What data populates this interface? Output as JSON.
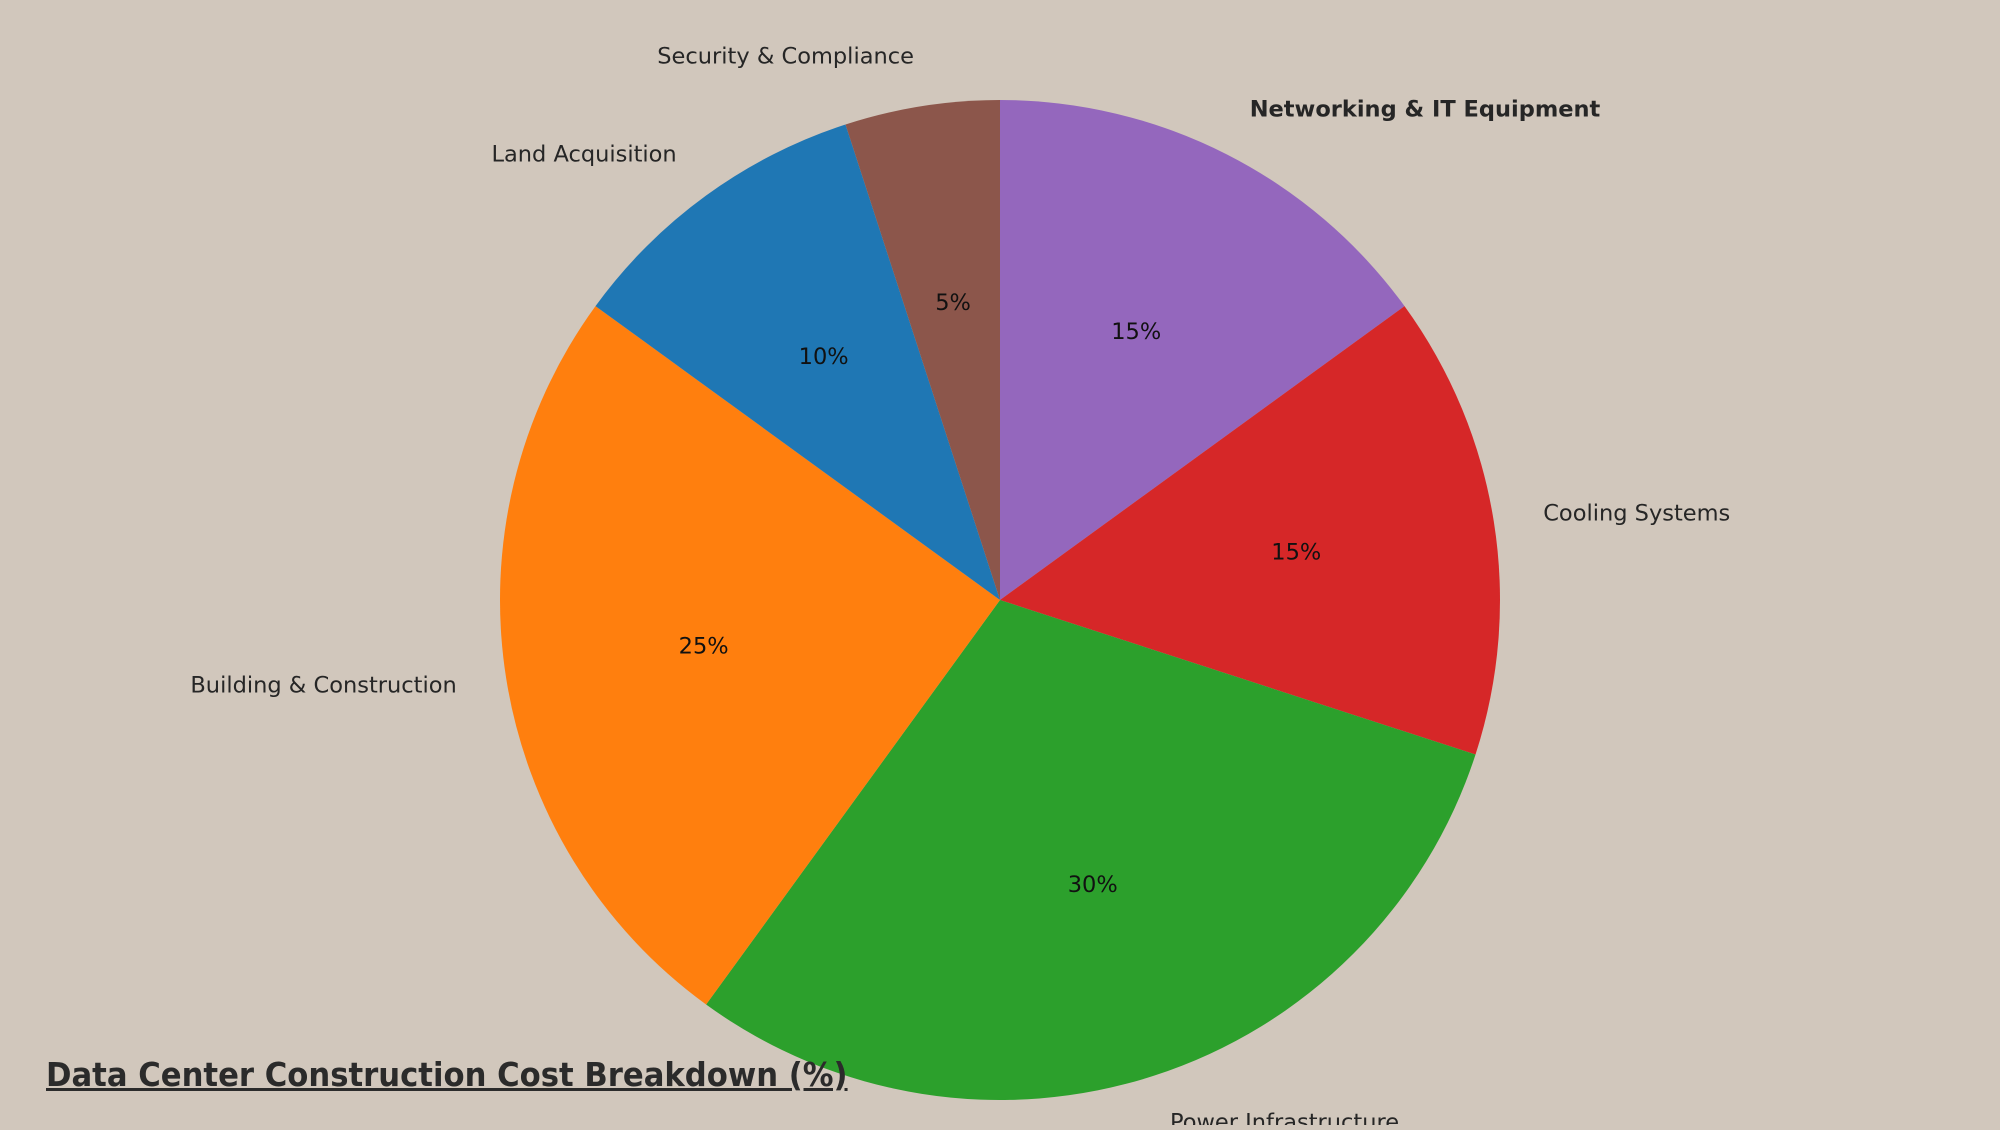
{
  "chart_data": {
    "type": "pie",
    "title": "Data Center Construction Cost Breakdown (%)",
    "start_angle_deg": 90,
    "direction": "clockwise",
    "slices": [
      {
        "label": "Networking & IT Equipment",
        "value": 15,
        "pct_label": "15%",
        "color": "#9467bd",
        "label_bold": true
      },
      {
        "label": "Cooling Systems",
        "value": 15,
        "pct_label": "15%",
        "color": "#d62728",
        "label_bold": false
      },
      {
        "label": "Power Infrastructure",
        "value": 30,
        "pct_label": "30%",
        "color": "#2ca02c",
        "label_bold": false
      },
      {
        "label": "Building & Construction",
        "value": 25,
        "pct_label": "25%",
        "color": "#ff7f0e",
        "label_bold": false
      },
      {
        "label": "Land Acquisition",
        "value": 10,
        "pct_label": "10%",
        "color": "#1f77b4",
        "label_bold": false
      },
      {
        "label": "Security & Compliance",
        "value": 5,
        "pct_label": "5%",
        "color": "#8c564b",
        "label_bold": false
      }
    ]
  },
  "background_color": "#d1c7bc"
}
